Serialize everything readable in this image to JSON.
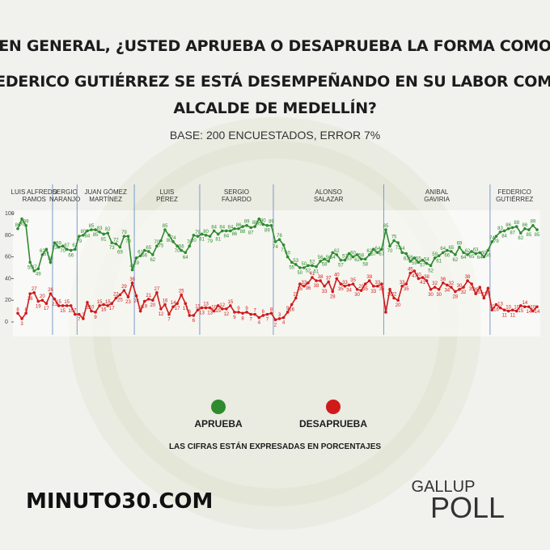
{
  "chart_data": {
    "type": "line",
    "title": [
      "EN GENERAL, ¿USTED APRUEBA O DESAPRUEBA LA FORMA COMO",
      "FEDERICO GUTIÉRREZ SE ESTÁ DESEMPEÑANDO EN SU LABOR COMO",
      "ALCALDE DE MEDELLÍN?"
    ],
    "subtitle": "BASE: 200 ENCUESTADOS, ERROR 7%",
    "note": "LAS CIFRAS ESTÁN EXPRESADAS EN PORCENTAJES",
    "ylim": [
      0,
      100
    ],
    "yticks": [
      0,
      20,
      40,
      60,
      80,
      100
    ],
    "periods": [
      {
        "name": [
          "LUIS ALFREDO",
          "RAMOS"
        ],
        "start": 0
      },
      {
        "name": [
          "SERGIO",
          "NARANJO"
        ],
        "start": 9
      },
      {
        "name": [
          "JUAN GÓMEZ",
          "MARTÍNEZ"
        ],
        "start": 15
      },
      {
        "name": [
          "LUIS",
          "PÉREZ"
        ],
        "start": 29
      },
      {
        "name": [
          "SERGIO",
          "FAJARDO"
        ],
        "start": 45
      },
      {
        "name": [
          "ALONSO",
          "SALAZAR"
        ],
        "start": 63
      },
      {
        "name": [
          "ANIBAL",
          "GAVIRIA"
        ],
        "start": 90
      },
      {
        "name": [
          "FEDERICO",
          "GUTIÉRREZ"
        ],
        "start": 116
      }
    ],
    "series": [
      {
        "name": "APRUEBA",
        "color": "#2e8b2e",
        "values": [
          86,
          95,
          89,
          55,
          47,
          49,
          62,
          67,
          55,
          73,
          69,
          70,
          67,
          66,
          67,
          79,
          80,
          84,
          85,
          85,
          83,
          81,
          82,
          73,
          72,
          69,
          79,
          79,
          48,
          59,
          61,
          66,
          65,
          62,
          70,
          75,
          85,
          80,
          74,
          70,
          66,
          64,
          70,
          80,
          79,
          81,
          80,
          79,
          84,
          81,
          84,
          84,
          84,
          86,
          86,
          88,
          89,
          87,
          88,
          95,
          90,
          89,
          89,
          74,
          76,
          71,
          60,
          55,
          53,
          50,
          50,
          52,
          52,
          51,
          56,
          58,
          56,
          64,
          62,
          57,
          57,
          63,
          60,
          62,
          58,
          58,
          62,
          67,
          64,
          67,
          85,
          70,
          75,
          73,
          64,
          63,
          56,
          59,
          55,
          57,
          54,
          52,
          59,
          61,
          64,
          66,
          65,
          62,
          69,
          64,
          62,
          65,
          63,
          64,
          60,
          66,
          74,
          79,
          83,
          84,
          86,
          87,
          88,
          82,
          86,
          85,
          89,
          85
        ]
      },
      {
        "name": "DESAPRUEBA",
        "color": "#d01a1a",
        "values": [
          8,
          3,
          8,
          26,
          27,
          19,
          20,
          17,
          26,
          21,
          15,
          15,
          15,
          15,
          7,
          7,
          3,
          18,
          10,
          9,
          15,
          16,
          15,
          17,
          22,
          25,
          29,
          23,
          36,
          24,
          10,
          19,
          21,
          20,
          27,
          12,
          16,
          7,
          14,
          17,
          25,
          17,
          6,
          6,
          11,
          13,
          13,
          13,
          10,
          15,
          12,
          12,
          15,
          9,
          9,
          8,
          9,
          7,
          7,
          4,
          6,
          7,
          8,
          2,
          3,
          4,
          9,
          16,
          22,
          35,
          33,
          36,
          41,
          38,
          38,
          33,
          37,
          28,
          40,
          35,
          33,
          34,
          35,
          30,
          29,
          35,
          38,
          33,
          33,
          35,
          9,
          30,
          22,
          20,
          33,
          35,
          45,
          47,
          40,
          41,
          38,
          30,
          32,
          30,
          36,
          34,
          32,
          28,
          30,
          32,
          38,
          35,
          26,
          32,
          22,
          31,
          11,
          16,
          13,
          11,
          10,
          11,
          10,
          15,
          14,
          14,
          10,
          14
        ]
      }
    ],
    "brand": "MINUTO30.COM",
    "logo": [
      "GALLUP",
      "POLL"
    ]
  }
}
